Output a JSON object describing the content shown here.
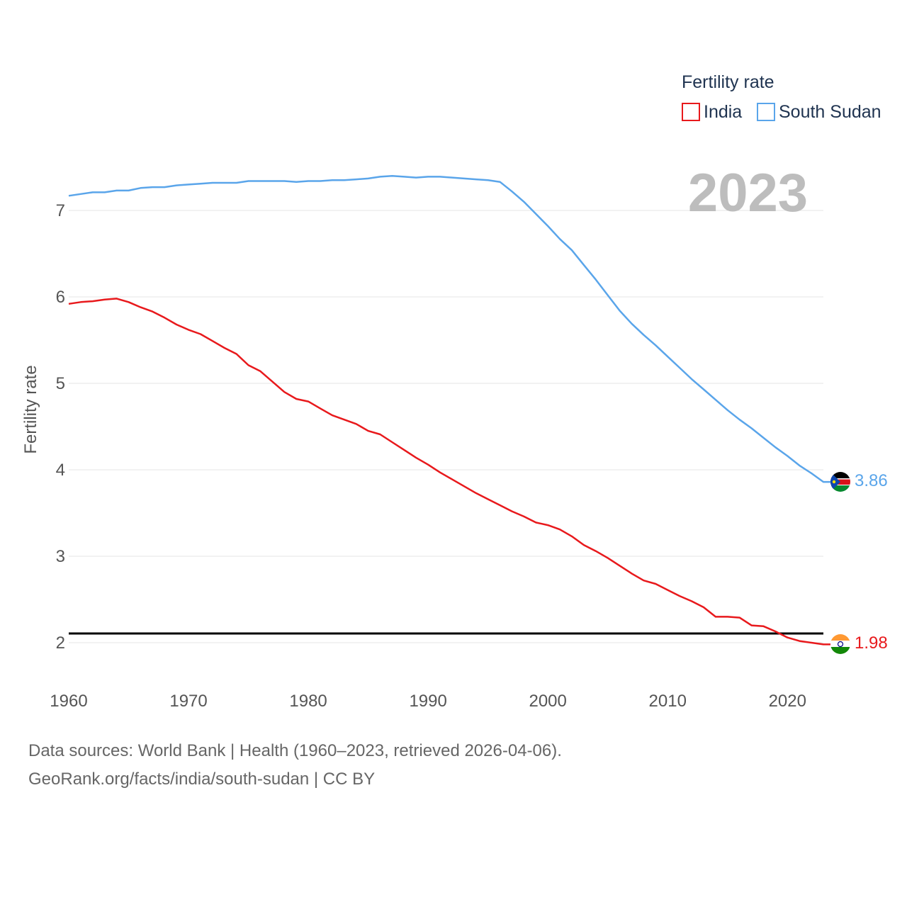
{
  "chart_data": {
    "type": "line",
    "ylabel": "Fertility rate",
    "year_label": "2023",
    "legend_title": "Fertility rate",
    "xlim": [
      1960,
      2023
    ],
    "ylim": [
      1.5,
      7.5
    ],
    "xticks": [
      1960,
      1970,
      1980,
      1990,
      2000,
      2010,
      2020
    ],
    "yticks": [
      2,
      3,
      4,
      5,
      6,
      7
    ],
    "reference_line": 2.1,
    "x": [
      1960,
      1961,
      1962,
      1963,
      1964,
      1965,
      1966,
      1967,
      1968,
      1969,
      1970,
      1971,
      1972,
      1973,
      1974,
      1975,
      1976,
      1977,
      1978,
      1979,
      1980,
      1981,
      1982,
      1983,
      1984,
      1985,
      1986,
      1987,
      1988,
      1989,
      1990,
      1991,
      1992,
      1993,
      1994,
      1995,
      1996,
      1997,
      1998,
      1999,
      2000,
      2001,
      2002,
      2003,
      2004,
      2005,
      2006,
      2007,
      2008,
      2009,
      2010,
      2011,
      2012,
      2013,
      2014,
      2015,
      2016,
      2017,
      2018,
      2019,
      2020,
      2021,
      2022,
      2023
    ],
    "series": [
      {
        "name": "India",
        "color": "#e8191c",
        "end_label": "1.98",
        "values": [
          5.92,
          5.94,
          5.95,
          5.97,
          5.98,
          5.94,
          5.88,
          5.83,
          5.76,
          5.68,
          5.62,
          5.57,
          5.49,
          5.41,
          5.34,
          5.21,
          5.14,
          5.02,
          4.9,
          4.82,
          4.79,
          4.71,
          4.63,
          4.58,
          4.53,
          4.45,
          4.41,
          4.32,
          4.23,
          4.14,
          4.06,
          3.97,
          3.89,
          3.81,
          3.73,
          3.66,
          3.59,
          3.52,
          3.46,
          3.39,
          3.36,
          3.31,
          3.23,
          3.13,
          3.06,
          2.98,
          2.89,
          2.8,
          2.72,
          2.68,
          2.61,
          2.54,
          2.48,
          2.41,
          2.3,
          2.3,
          2.29,
          2.2,
          2.19,
          2.13,
          2.06,
          2.02,
          2.0,
          1.98
        ]
      },
      {
        "name": "South Sudan",
        "color": "#5aa5ea",
        "end_label": "3.86",
        "values": [
          7.17,
          7.19,
          7.21,
          7.21,
          7.23,
          7.23,
          7.26,
          7.27,
          7.27,
          7.29,
          7.3,
          7.31,
          7.32,
          7.32,
          7.32,
          7.34,
          7.34,
          7.34,
          7.34,
          7.33,
          7.34,
          7.34,
          7.35,
          7.35,
          7.36,
          7.37,
          7.39,
          7.4,
          7.39,
          7.38,
          7.39,
          7.39,
          7.38,
          7.37,
          7.36,
          7.35,
          7.33,
          7.22,
          7.1,
          6.96,
          6.82,
          6.67,
          6.54,
          6.37,
          6.2,
          6.02,
          5.84,
          5.69,
          5.56,
          5.44,
          5.31,
          5.18,
          5.05,
          4.93,
          4.81,
          4.69,
          4.58,
          4.48,
          4.37,
          4.26,
          4.16,
          4.05,
          3.96,
          3.86
        ]
      }
    ]
  },
  "footer": {
    "line1": "Data sources: World Bank | Health (1960–2023, retrieved 2026-04-06).",
    "line2": "GeoRank.org/facts/india/south-sudan | CC BY"
  }
}
